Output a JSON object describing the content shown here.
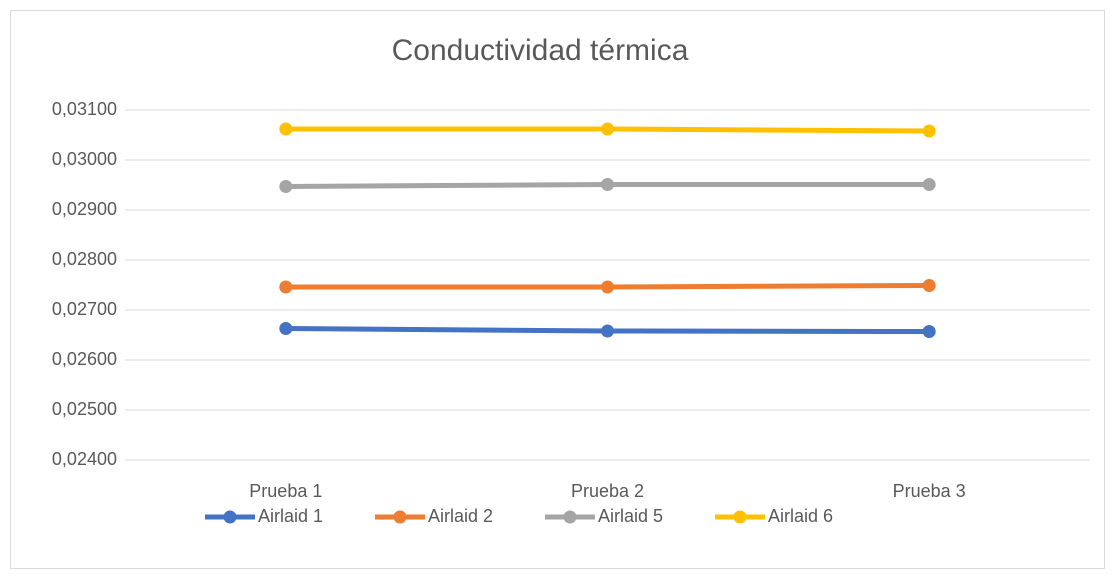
{
  "chart_data": {
    "type": "line",
    "title": "Conductividad térmica",
    "categories": [
      "Prueba 1",
      "Prueba 2",
      "Prueba 3"
    ],
    "series": [
      {
        "name": "Airlaid 1",
        "color": "#4472c4",
        "values": [
          0.02663,
          0.02658,
          0.02657
        ]
      },
      {
        "name": "Airlaid 2",
        "color": "#ed7d31",
        "values": [
          0.02746,
          0.02746,
          0.02749
        ]
      },
      {
        "name": "Airlaid 5",
        "color": "#a5a5a5",
        "values": [
          0.02947,
          0.02951,
          0.02951
        ]
      },
      {
        "name": "Airlaid 6",
        "color": "#ffc000",
        "values": [
          0.03062,
          0.03062,
          0.03058
        ]
      }
    ],
    "ylim": [
      0.024,
      0.031
    ],
    "yticks": [
      {
        "value": 0.024,
        "label": "0,02400"
      },
      {
        "value": 0.025,
        "label": "0,02500"
      },
      {
        "value": 0.026,
        "label": "0,02600"
      },
      {
        "value": 0.027,
        "label": "0,02700"
      },
      {
        "value": 0.028,
        "label": "0,02800"
      },
      {
        "value": 0.029,
        "label": "0,02900"
      },
      {
        "value": 0.03,
        "label": "0,03000"
      },
      {
        "value": 0.031,
        "label": "0,03100"
      }
    ],
    "grid": true,
    "legend": "bottom"
  }
}
